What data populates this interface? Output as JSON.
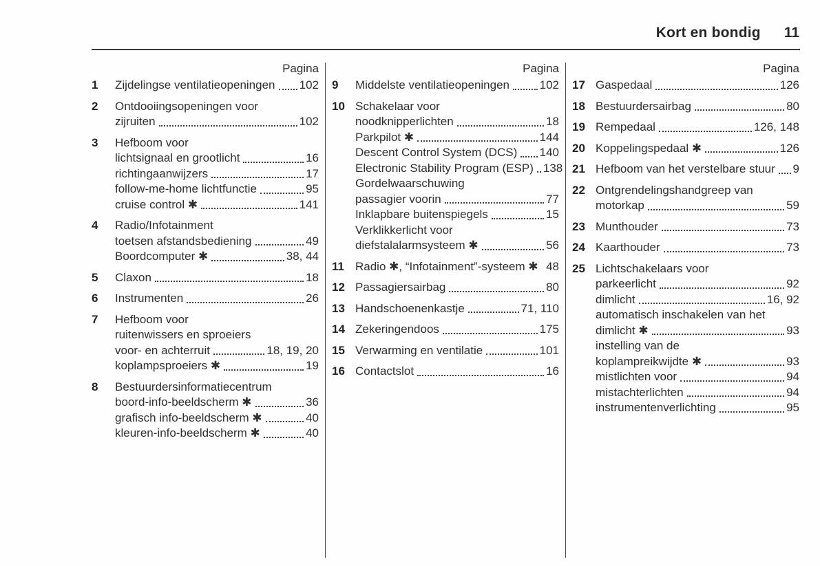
{
  "header": {
    "title": "Kort en bondig",
    "page_number": "11"
  },
  "columns": [
    {
      "pagina_label": "Pagina",
      "items": [
        {
          "num": "1",
          "lines": [
            {
              "text": "Zijdelingse ventilatieopeningen",
              "page": "102"
            }
          ]
        },
        {
          "num": "2",
          "lines": [
            {
              "text": "Ontdooiingsopeningen voor"
            },
            {
              "text": "zijruiten",
              "page": "102"
            }
          ]
        },
        {
          "num": "3",
          "lines": [
            {
              "text": "Hefboom voor"
            },
            {
              "text": "lichtsignaal en grootlicht",
              "page": "16"
            },
            {
              "text": "richtingaanwijzers",
              "page": "17"
            },
            {
              "text": "follow-me-home lichtfunctie",
              "page": "95"
            },
            {
              "text": "cruise control ✱",
              "page": "141"
            }
          ]
        },
        {
          "num": "4",
          "lines": [
            {
              "text": "Radio/Infotainment"
            },
            {
              "text": "toetsen afstandsbediening",
              "page": "49"
            },
            {
              "text": "Boordcomputer ✱",
              "page": "38, 44"
            }
          ]
        },
        {
          "num": "5",
          "lines": [
            {
              "text": "Claxon",
              "page": "18"
            }
          ]
        },
        {
          "num": "6",
          "lines": [
            {
              "text": "Instrumenten",
              "page": "26"
            }
          ]
        },
        {
          "num": "7",
          "lines": [
            {
              "text": "Hefboom voor"
            },
            {
              "text": "ruitenwissers en sproeiers"
            },
            {
              "text": "voor- en achterruit",
              "page": "18, 19, 20"
            },
            {
              "text": "koplampsproeiers ✱",
              "page": "19"
            }
          ]
        },
        {
          "num": "8",
          "lines": [
            {
              "text": "Bestuurdersinformatiecentrum"
            },
            {
              "text": "boord-info-beeldscherm ✱",
              "page": "36"
            },
            {
              "text": "grafisch info-beeldscherm ✱",
              "page": "40"
            },
            {
              "text": "kleuren-info-beeldscherm ✱",
              "page": "40"
            }
          ]
        }
      ]
    },
    {
      "pagina_label": "Pagina",
      "items": [
        {
          "num": "9",
          "lines": [
            {
              "text": "Middelste ventilatieopeningen",
              "page": "102"
            }
          ]
        },
        {
          "num": "10",
          "lines": [
            {
              "text": "Schakelaar voor"
            },
            {
              "text": "noodknipperlichten",
              "page": "18"
            },
            {
              "text": "Parkpilot ✱",
              "page": "144"
            },
            {
              "text": "Descent Control System (DCS)",
              "page": "140"
            },
            {
              "text": "Electronic Stability Program (ESP)",
              "page": "138"
            },
            {
              "text": "Gordelwaarschuwing"
            },
            {
              "text": "passagier voorin",
              "page": "77"
            },
            {
              "text": "Inklapbare buitenspiegels",
              "page": "15"
            },
            {
              "text": "Verklikkerlicht voor"
            },
            {
              "text": "diefstalalarmsysteem ✱",
              "page": "56"
            }
          ]
        },
        {
          "num": "11",
          "lines": [
            {
              "text": "Radio ✱, “Infotainment”-systeem ✱",
              "page": "48",
              "leader": false
            }
          ]
        },
        {
          "num": "12",
          "lines": [
            {
              "text": "Passagiersairbag",
              "page": "80"
            }
          ]
        },
        {
          "num": "13",
          "lines": [
            {
              "text": "Handschoenenkastje",
              "page": "71, 110"
            }
          ]
        },
        {
          "num": "14",
          "lines": [
            {
              "text": "Zekeringendoos",
              "page": "175"
            }
          ]
        },
        {
          "num": "15",
          "lines": [
            {
              "text": "Verwarming en ventilatie",
              "page": "101"
            }
          ]
        },
        {
          "num": "16",
          "lines": [
            {
              "text": "Contactslot",
              "page": "16"
            }
          ]
        }
      ]
    },
    {
      "pagina_label": "Pagina",
      "items": [
        {
          "num": "17",
          "lines": [
            {
              "text": "Gaspedaal",
              "page": "126"
            }
          ]
        },
        {
          "num": "18",
          "lines": [
            {
              "text": "Bestuurdersairbag",
              "page": "80"
            }
          ]
        },
        {
          "num": "19",
          "lines": [
            {
              "text": "Rempedaal",
              "page": "126, 148"
            }
          ]
        },
        {
          "num": "20",
          "lines": [
            {
              "text": "Koppelingspedaal ✱",
              "page": "126"
            }
          ]
        },
        {
          "num": "21",
          "lines": [
            {
              "text": "Hefboom van het verstelbare stuur",
              "page": "9"
            }
          ]
        },
        {
          "num": "22",
          "lines": [
            {
              "text": "Ontgrendelingshandgreep van"
            },
            {
              "text": "motorkap",
              "page": "59"
            }
          ]
        },
        {
          "num": "23",
          "lines": [
            {
              "text": "Munthouder",
              "page": "73"
            }
          ]
        },
        {
          "num": "24",
          "lines": [
            {
              "text": "Kaarthouder",
              "page": "73"
            }
          ]
        },
        {
          "num": "25",
          "lines": [
            {
              "text": "Lichtschakelaars voor"
            },
            {
              "text": "parkeerlicht",
              "page": "92"
            },
            {
              "text": "dimlicht",
              "page": "16, 92"
            },
            {
              "text": "automatisch inschakelen van het"
            },
            {
              "text": "dimlicht ✱",
              "page": "93"
            },
            {
              "text": "instelling van de"
            },
            {
              "text": "koplampreikwijdte ✱",
              "page": "93"
            },
            {
              "text": "mistlichten voor",
              "page": "94"
            },
            {
              "text": "mistachterlichten",
              "page": "94"
            },
            {
              "text": "instrumentenverlichting",
              "page": "95"
            }
          ]
        }
      ]
    }
  ]
}
